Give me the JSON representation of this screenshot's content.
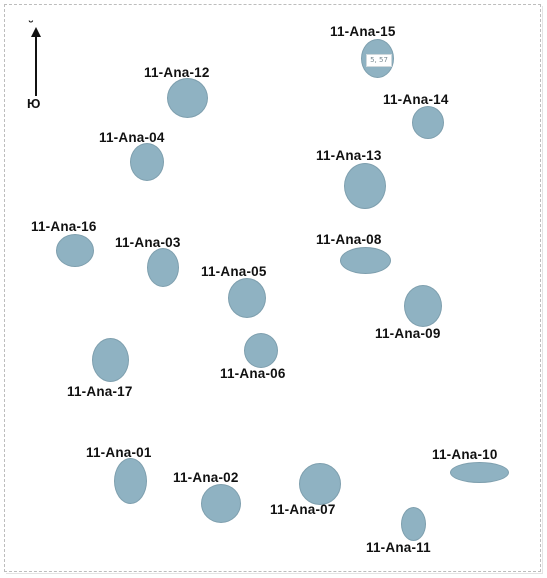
{
  "north": {
    "label": "Ю",
    "tick": "˘"
  },
  "colors": {
    "fill": "#8fb2c2",
    "stroke": "#7e9fae"
  },
  "anomalies": {
    "a01": {
      "label": "11-Ana-01"
    },
    "a02": {
      "label": "11-Ana-02"
    },
    "a03": {
      "label": "11-Ana-03"
    },
    "a04": {
      "label": "11-Ana-04"
    },
    "a05": {
      "label": "11-Ana-05"
    },
    "a06": {
      "label": "11-Ana-06"
    },
    "a07": {
      "label": "11-Ana-07"
    },
    "a08": {
      "label": "11-Ana-08"
    },
    "a09": {
      "label": "11-Ana-09"
    },
    "a10": {
      "label": "11-Ana-10"
    },
    "a11": {
      "label": "11-Ana-11"
    },
    "a12": {
      "label": "11-Ana-12"
    },
    "a13": {
      "label": "11-Ana-13"
    },
    "a14": {
      "label": "11-Ana-14"
    },
    "a15": {
      "label": "11-Ana-15",
      "badge": "5, 57"
    },
    "a16": {
      "label": "11-Ana-16"
    },
    "a17": {
      "label": "11-Ana-17"
    }
  }
}
